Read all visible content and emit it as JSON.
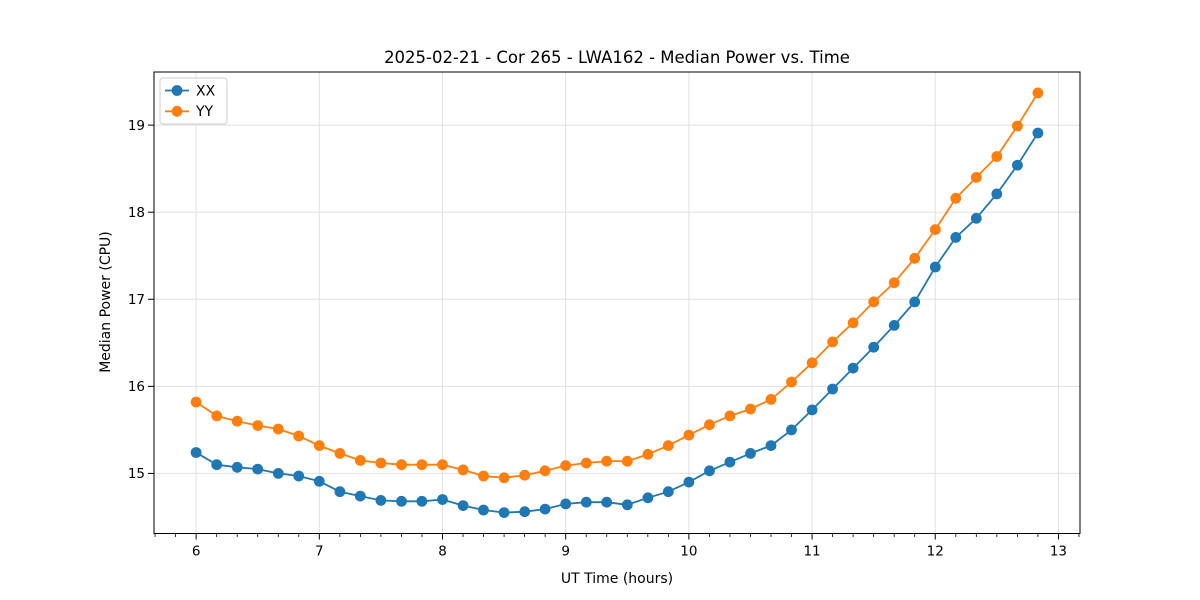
{
  "chart_data": {
    "type": "line",
    "title": "2025-02-21 - Cor 265 - LWA162 - Median Power vs. Time",
    "xlabel": "UT Time (hours)",
    "ylabel": "Median Power (CPU)",
    "xlim": [
      5.658,
      13.175
    ],
    "ylim": [
      14.31,
      19.61
    ],
    "x_major_ticks": [
      6,
      7,
      8,
      9,
      10,
      11,
      12,
      13
    ],
    "y_major_ticks": [
      15,
      16,
      17,
      18,
      19
    ],
    "x_minor_step": 0.1667,
    "grid": true,
    "legend_position": "upper-left",
    "background_color": "#ffffff",
    "grid_color": "#e0e0e0",
    "spine_color": "#000000",
    "x": [
      6.0,
      6.167,
      6.333,
      6.5,
      6.667,
      6.833,
      7.0,
      7.167,
      7.333,
      7.5,
      7.667,
      7.833,
      8.0,
      8.167,
      8.333,
      8.5,
      8.667,
      8.833,
      9.0,
      9.167,
      9.333,
      9.5,
      9.667,
      9.833,
      10.0,
      10.167,
      10.333,
      10.5,
      10.667,
      10.833,
      11.0,
      11.167,
      11.333,
      11.5,
      11.667,
      11.833,
      12.0,
      12.167,
      12.333,
      12.5,
      12.667,
      12.833
    ],
    "series": [
      {
        "name": "XX",
        "color": "#1f77b4",
        "values": [
          15.24,
          15.1,
          15.07,
          15.05,
          15.0,
          14.97,
          14.91,
          14.79,
          14.74,
          14.69,
          14.68,
          14.68,
          14.7,
          14.63,
          14.58,
          14.55,
          14.56,
          14.59,
          14.65,
          14.67,
          14.67,
          14.64,
          14.72,
          14.79,
          14.9,
          15.03,
          15.13,
          15.23,
          15.32,
          15.5,
          15.73,
          15.97,
          16.21,
          16.45,
          16.7,
          16.97,
          17.37,
          17.71,
          17.93,
          18.21,
          18.54,
          18.91
        ]
      },
      {
        "name": "YY",
        "color": "#ff7f0e",
        "values": [
          15.82,
          15.66,
          15.6,
          15.55,
          15.51,
          15.43,
          15.32,
          15.23,
          15.15,
          15.12,
          15.1,
          15.1,
          15.1,
          15.04,
          14.97,
          14.95,
          14.98,
          15.03,
          15.09,
          15.12,
          15.14,
          15.14,
          15.22,
          15.32,
          15.44,
          15.56,
          15.66,
          15.74,
          15.85,
          16.05,
          16.27,
          16.51,
          16.73,
          16.97,
          17.19,
          17.47,
          17.8,
          18.16,
          18.4,
          18.64,
          18.99,
          19.37
        ]
      }
    ]
  }
}
